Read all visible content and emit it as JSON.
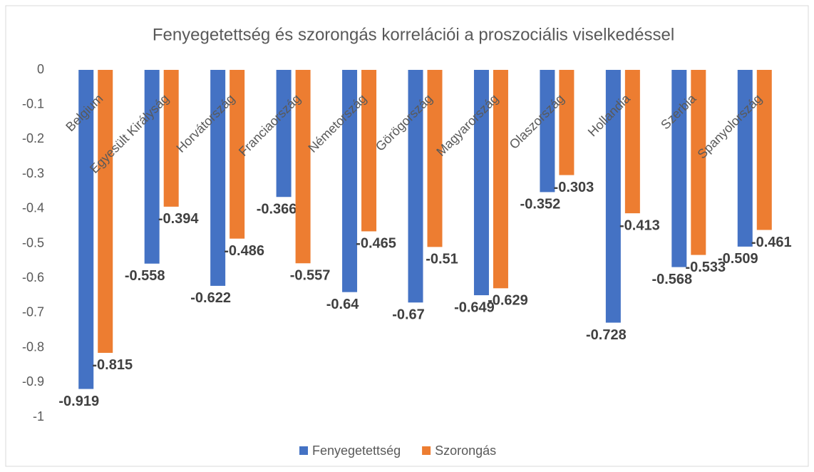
{
  "chart_data": {
    "type": "bar",
    "title": "Fenyegetettség és szorongás korrelációi a proszociális viselkedéssel",
    "categories": [
      "Belgium",
      "Egyesült Királyság",
      "Horvátország",
      "Franciaország",
      "Németország",
      "Görögország",
      "Magyarország",
      "Olaszország",
      "Hollandia",
      "Szerbia",
      "Spanyolország"
    ],
    "series": [
      {
        "name": "Fenyegetettség",
        "color": "#4472c4",
        "values": [
          -0.919,
          -0.558,
          -0.622,
          -0.366,
          -0.64,
          -0.67,
          -0.649,
          -0.352,
          -0.728,
          -0.568,
          -0.509
        ]
      },
      {
        "name": "Szorongás",
        "color": "#ed7d31",
        "values": [
          -0.815,
          -0.394,
          -0.486,
          -0.557,
          -0.465,
          -0.51,
          -0.629,
          -0.303,
          -0.413,
          -0.533,
          -0.461
        ]
      }
    ],
    "ylim": [
      -1,
      0
    ],
    "yticks": [
      0,
      -0.1,
      -0.2,
      -0.3,
      -0.4,
      -0.5,
      -0.6,
      -0.7,
      -0.8,
      -0.9,
      -1
    ],
    "grid": false,
    "legend": "bottom"
  }
}
